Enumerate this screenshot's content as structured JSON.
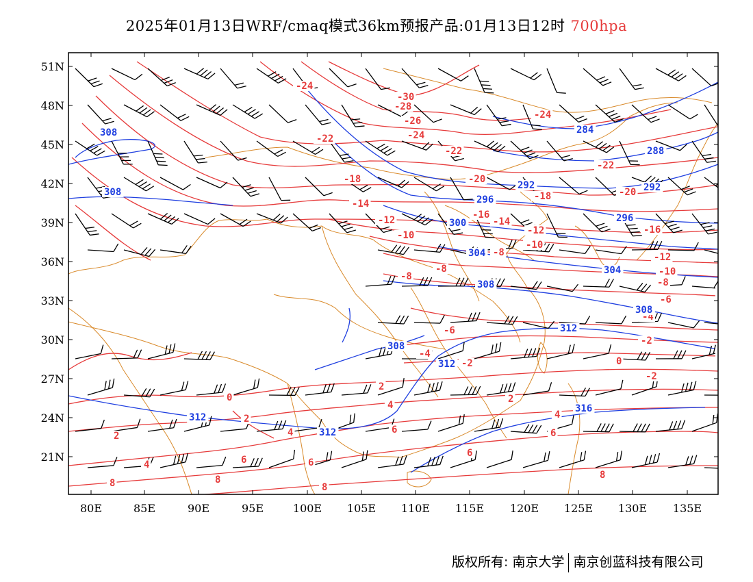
{
  "title": {
    "main": "2025年01月13日WRF/cmaq模式36km预报产品:01月13日12时",
    "level": "700hpa"
  },
  "colors": {
    "temperature_contour": "#e63b3b",
    "height_contour": "#1f3fe0",
    "boundaries": "#d98a2b",
    "wind_barb": "#000000",
    "temperature_label": "#e63b3b",
    "height_label": "#1f3fe0"
  },
  "axes": {
    "lat_labels": [
      "51N",
      "48N",
      "45N",
      "42N",
      "39N",
      "36N",
      "33N",
      "30N",
      "27N",
      "24N",
      "21N"
    ],
    "lon_labels": [
      "80E",
      "85E",
      "90E",
      "95E",
      "100E",
      "105E",
      "110E",
      "115E",
      "120E",
      "125E",
      "130E",
      "135E"
    ]
  },
  "temperature_labels": [
    "-30",
    "-28",
    "-26",
    "-24",
    "-24",
    "-24",
    "-22",
    "-22",
    "-22",
    "-20",
    "-20",
    "-18",
    "-18",
    "-16",
    "-16",
    "-14",
    "-14",
    "-12",
    "-12",
    "-12",
    "-10",
    "-10",
    "-10",
    "-8",
    "-8",
    "-8",
    "-8",
    "-6",
    "-6",
    "-6",
    "-4",
    "-4",
    "-2",
    "-2",
    "-2",
    "0",
    "0",
    "0",
    "2",
    "2",
    "2",
    "2",
    "4",
    "4",
    "4",
    "4",
    "6",
    "6",
    "6",
    "6",
    "6",
    "8",
    "8",
    "8",
    "8"
  ],
  "height_labels": [
    "308",
    "308",
    "284",
    "288",
    "292",
    "292",
    "296",
    "296",
    "300",
    "304",
    "304",
    "308",
    "308",
    "308",
    "312",
    "312",
    "312",
    "312",
    "316"
  ],
  "footer": {
    "left": "版权所有: 南京大学",
    "right": "南京创蓝科技有限公司"
  }
}
